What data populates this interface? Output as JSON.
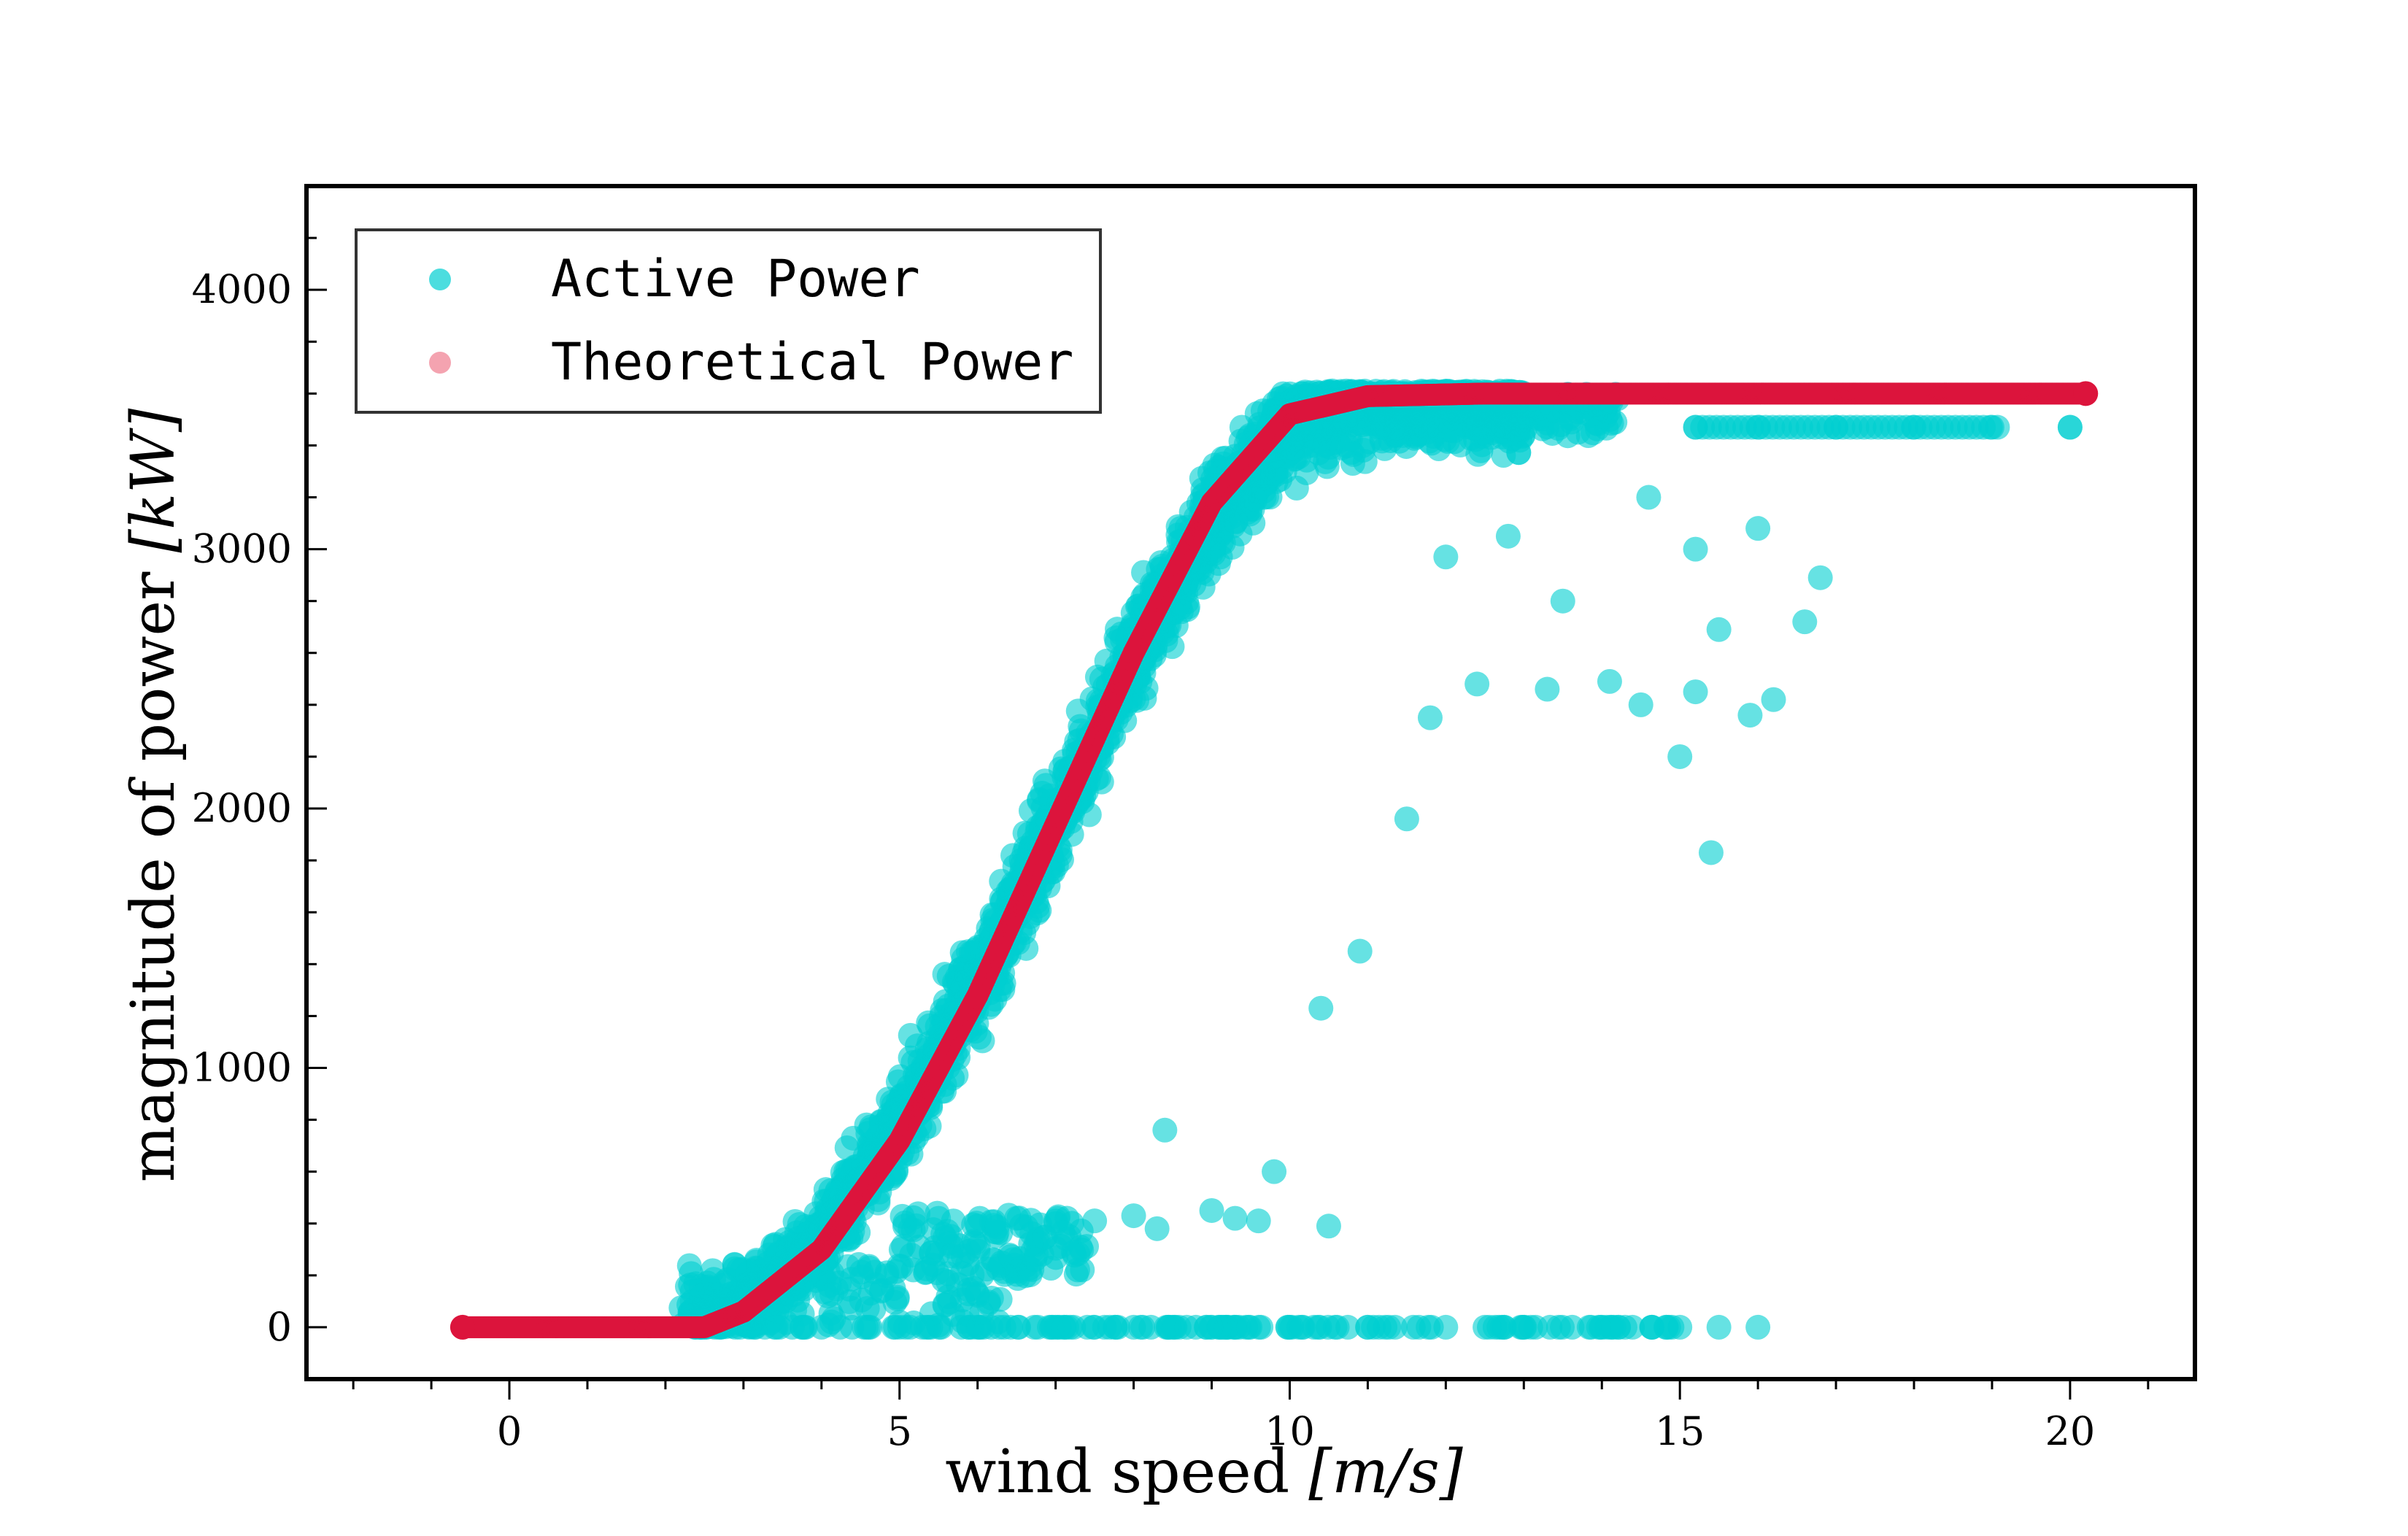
{
  "chart_data": {
    "type": "scatter",
    "title": "",
    "xlabel": "wind speed",
    "xlabel_unit": "[m/s]",
    "ylabel": "magnitude of power",
    "ylabel_unit": "[kW]",
    "xlim": [
      -2.6,
      21.6
    ],
    "ylim": [
      -200,
      4400
    ],
    "x_ticks": [
      0,
      5,
      10,
      15,
      20
    ],
    "y_ticks": [
      0,
      1000,
      2000,
      3000,
      4000
    ],
    "x_minor_step": 1,
    "y_minor_step": 200,
    "grid": false,
    "legend_position": "top-left",
    "rated_power": 3600,
    "series": [
      {
        "name": "Active Power",
        "color": "#00CED1",
        "opacity": 0.6,
        "curve_points": [
          [
            2.4,
            0
          ],
          [
            3,
            90
          ],
          [
            4,
            330
          ],
          [
            5,
            780
          ],
          [
            6,
            1330
          ],
          [
            7,
            1950
          ],
          [
            8,
            2580
          ],
          [
            9,
            3120
          ],
          [
            10,
            3480
          ],
          [
            11,
            3590
          ],
          [
            12,
            3600
          ],
          [
            13,
            3560
          ]
        ],
        "rated_points": [
          [
            15.2,
            3470
          ],
          [
            16,
            3470
          ],
          [
            17,
            3470
          ],
          [
            18,
            3470
          ],
          [
            19,
            3470
          ],
          [
            20,
            3470
          ]
        ],
        "zero_points": [
          [
            2.5,
            0
          ],
          [
            4,
            0
          ],
          [
            5,
            0
          ],
          [
            6,
            0
          ],
          [
            7,
            0
          ],
          [
            8,
            0
          ],
          [
            9,
            0
          ],
          [
            10,
            0
          ],
          [
            11,
            0
          ],
          [
            12,
            0
          ],
          [
            13,
            0
          ],
          [
            14,
            0
          ],
          [
            15,
            0
          ],
          [
            15.5,
            0
          ],
          [
            16,
            0
          ]
        ],
        "low_band_points": [
          [
            5.5,
            420
          ],
          [
            6,
            390
          ],
          [
            6.5,
            420
          ],
          [
            7,
            400
          ],
          [
            7.5,
            410
          ],
          [
            8,
            430
          ],
          [
            8.3,
            380
          ],
          [
            9,
            450
          ],
          [
            9.3,
            420
          ],
          [
            9.6,
            410
          ],
          [
            10.5,
            390
          ]
        ],
        "outlier_points": [
          [
            8.4,
            760
          ],
          [
            9.8,
            600
          ],
          [
            10.4,
            1230
          ],
          [
            10.9,
            1450
          ],
          [
            11.5,
            1960
          ],
          [
            11.8,
            2350
          ],
          [
            12.4,
            2480
          ],
          [
            13.3,
            2460
          ],
          [
            14.1,
            2490
          ],
          [
            14.5,
            2400
          ],
          [
            15,
            2200
          ],
          [
            15.2,
            2450
          ],
          [
            15.4,
            1830
          ],
          [
            15.9,
            2360
          ],
          [
            16.2,
            2420
          ],
          [
            16.6,
            2720
          ],
          [
            16.8,
            2890
          ],
          [
            15.5,
            2690
          ],
          [
            13.5,
            2800
          ],
          [
            14.6,
            3200
          ],
          [
            15.2,
            3000
          ],
          [
            12.8,
            3050
          ],
          [
            12,
            2970
          ],
          [
            16,
            3080
          ]
        ]
      },
      {
        "name": "Theoretical Power",
        "color": "#DC143C",
        "legend_color": "#F4A3B0",
        "curve_points": [
          [
            -0.6,
            0
          ],
          [
            2.5,
            0
          ],
          [
            3,
            60
          ],
          [
            4,
            300
          ],
          [
            5,
            720
          ],
          [
            6,
            1280
          ],
          [
            7,
            1940
          ],
          [
            8,
            2600
          ],
          [
            9,
            3180
          ],
          [
            10,
            3520
          ],
          [
            11,
            3590
          ],
          [
            12.5,
            3600
          ],
          [
            20.2,
            3600
          ]
        ]
      }
    ]
  }
}
